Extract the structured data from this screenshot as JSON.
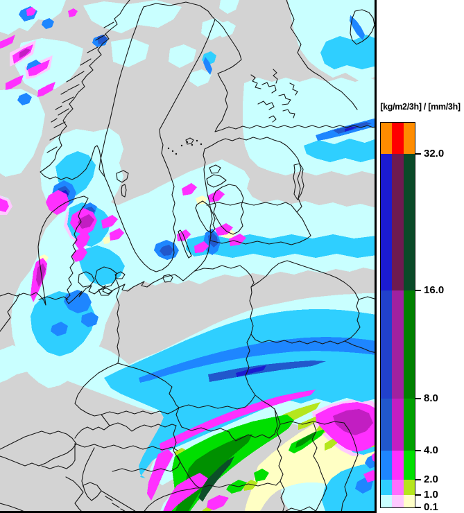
{
  "legend": {
    "title": "[kg/m2/3h] / [mm/3h]",
    "tick_labels": [
      "32.0",
      "16.0",
      "8.0",
      "4.0",
      "2.0",
      "1.0",
      "0.1"
    ],
    "bands": [
      {
        "tick": "32.0",
        "colors": [
          "#ff8c00",
          "#ff0000",
          "#ff8c00"
        ]
      },
      {
        "tick": "16.0",
        "colors": [
          "#1b1bd1",
          "#6e1a50",
          "#0a4a28"
        ]
      },
      {
        "tick": "8.0",
        "colors": [
          "#2141cc",
          "#a021a0",
          "#008000"
        ]
      },
      {
        "tick": "4.0",
        "colors": [
          "#2158cc",
          "#c21ec2",
          "#00a000"
        ]
      },
      {
        "tick": "2.0",
        "colors": [
          "#1e86ff",
          "#ff30ff",
          "#00df00"
        ]
      },
      {
        "tick": "1.0",
        "colors": [
          "#2fcfff",
          "#ff6eff",
          "#b5e61d"
        ]
      },
      {
        "tick": "0.1",
        "colors": [
          "#c9ffff",
          "#ffc9ff",
          "#ffffc9"
        ]
      }
    ],
    "background": "#ffffff",
    "text_color": "#000000"
  },
  "map": {
    "background": "#d3d3d3",
    "outline_color": "#161616",
    "frame_color": "#000000",
    "colors": {
      "pale_cyan": "#c9ffff",
      "cyan": "#2fcfff",
      "blue": "#1e86ff",
      "mid_blue": "#2158cc",
      "dark_blue": "#1b1bd1",
      "pale_pink": "#ffc9ff",
      "magenta": "#ff30ff",
      "dark_magenta": "#c21ec2",
      "green": "#00df00",
      "mid_green": "#009000",
      "dark_green": "#0c4f28",
      "yellow_green": "#b5e61d",
      "pale_yellow": "#ffffc4"
    }
  }
}
